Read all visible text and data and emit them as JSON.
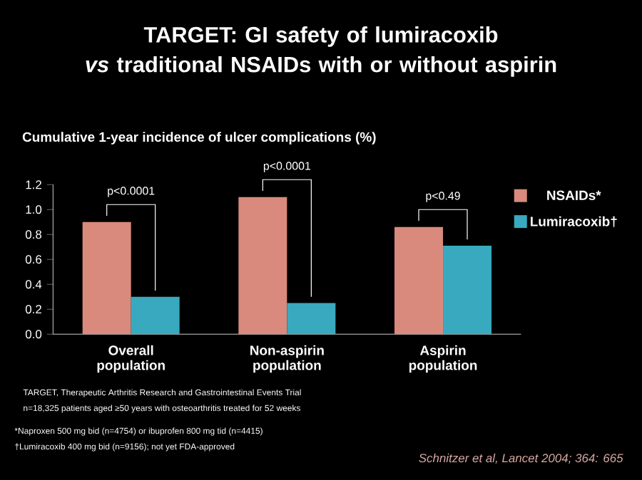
{
  "chart_data": {
    "type": "bar",
    "title": "TARGET: GI safety of lumiracoxib\n*vs* traditional NSAIDs with or without aspirin",
    "subtitle": "Cumulative 1-year incidence of ulcer complications (%)",
    "categories": [
      "Overall population",
      "Non-aspirin population",
      "Aspirin population"
    ],
    "series": [
      {
        "name": "NSAIDs*",
        "color": "#d98a7c",
        "values": [
          0.9,
          1.1,
          0.86
        ]
      },
      {
        "name": "Lumiracoxib†",
        "color": "#39a9bf",
        "values": [
          0.3,
          0.25,
          0.71
        ]
      }
    ],
    "ylim": [
      0,
      1.2
    ],
    "yticks": [
      {
        "value": 0,
        "label": "0.0"
      },
      {
        "value": 0.2,
        "label": "0.2"
      },
      {
        "value": 0.4,
        "label": "0.4"
      },
      {
        "value": 0.6,
        "label": "0.6"
      },
      {
        "value": 0.8,
        "label": "0.8"
      },
      {
        "value": 1.0,
        "label": "1.0"
      },
      {
        "value": 1.2,
        "label": "1.2"
      }
    ],
    "legend": "top right",
    "grid": false,
    "annotations": [
      "p<0.0001",
      "p<0.0001",
      "p<0.49",
      "TARGET, Therapeutic Arthritis Research and Gastrointestinal Events Trial",
      "n=18,325 patients aged ≥50 years with osteoarthritis treated for 52 weeks",
      "*Naproxen 500 mg bid (n=4754) or ibuprofen 800 mg tid (n=4415)",
      "†Lumiracoxib 400 mg bid (n=9156); not yet FDA-approved",
      "Schnitzer et al, Lancet 2004; 364: 665"
    ]
  }
}
